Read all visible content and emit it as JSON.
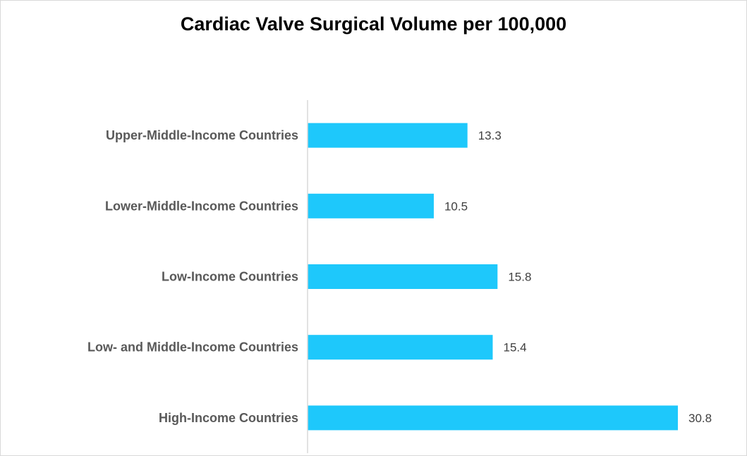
{
  "chart_data": {
    "type": "bar",
    "orientation": "horizontal",
    "title": "Cardiac Valve Surgical Volume per 100,000",
    "categories": [
      "Upper-Middle-Income Countries",
      "Lower-Middle-Income Countries",
      "Low-Income Countries",
      "Low- and Middle-Income Countries",
      "High-Income Countries"
    ],
    "values": [
      13.3,
      10.5,
      15.8,
      15.4,
      30.8
    ],
    "value_labels": [
      "13.3",
      "10.5",
      "15.8",
      "15.4",
      "30.8"
    ],
    "xlabel": "",
    "ylabel": "",
    "xlim": [
      0,
      30.8
    ],
    "grid": false,
    "legend": "none",
    "bar_color": "#1EC8FB",
    "axis_color": "#d9d9d9"
  }
}
